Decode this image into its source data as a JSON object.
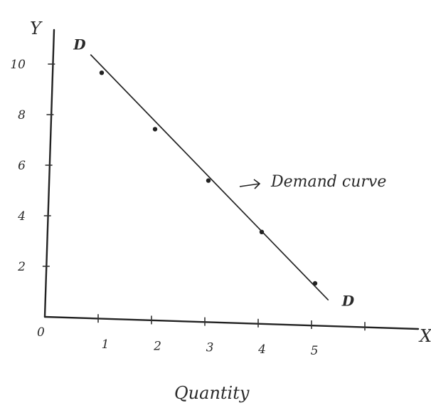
{
  "chart_data": {
    "type": "line",
    "xlabel": "Quantity",
    "ylabel": "Y",
    "x_axis_end_label": "X",
    "origin_label": "0",
    "x_ticks": [
      "1",
      "2",
      "3",
      "4",
      "5"
    ],
    "y_ticks": [
      "2",
      "4",
      "6",
      "8",
      "10"
    ],
    "xlim": [
      0,
      6.9
    ],
    "ylim": [
      0,
      11.8
    ],
    "grid": false,
    "series": [
      {
        "name": "Demand curve",
        "x": [
          1,
          2,
          3,
          4,
          5
        ],
        "y": [
          9.8,
          7.6,
          5.6,
          3.6,
          1.6
        ]
      }
    ],
    "line_start": [
      0.75,
      10.4
    ],
    "line_end": [
      5.25,
      1.0
    ],
    "curve_end_labels": [
      "D",
      "D"
    ],
    "annotation": "Demand curve",
    "line_color": "#222222"
  }
}
